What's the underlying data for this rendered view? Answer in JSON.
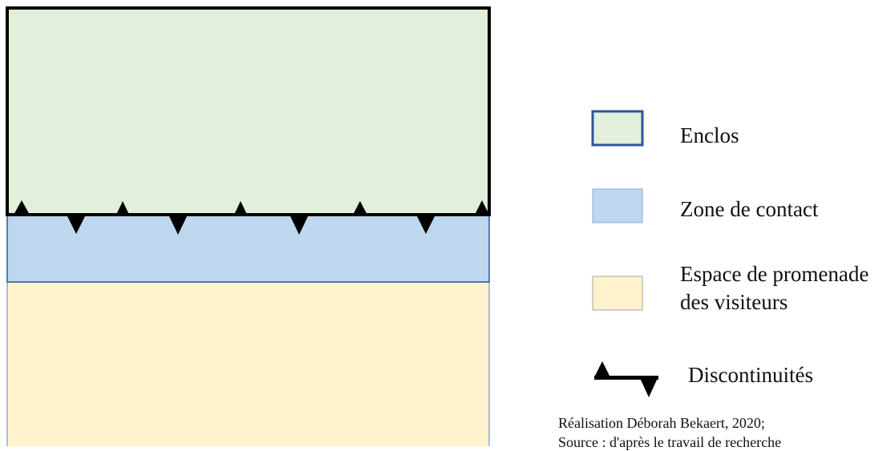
{
  "colors": {
    "enclos_fill": "#e2efda",
    "enclos_border": "#000000",
    "contact_fill": "#bdd7ee",
    "contact_border": "#2f5597",
    "promenade_fill": "#fff2cc",
    "promenade_border": "#8faadc",
    "legend_enclos_border": "#2f5597",
    "legend_contact_border": "#8faadc",
    "legend_promenade_border": "#a6a6a6",
    "marker": "#000000"
  },
  "legend": {
    "enclos": "Enclos",
    "contact": "Zone de contact",
    "promenade_line1": "Espace de promenade",
    "promenade_line2": "des visiteurs",
    "discontinuites": "Discontinuités"
  },
  "credits": {
    "line1": "Réalisation Déborah Bekaert, 2020;",
    "line2": "Source : d'après le travail de recherche"
  }
}
